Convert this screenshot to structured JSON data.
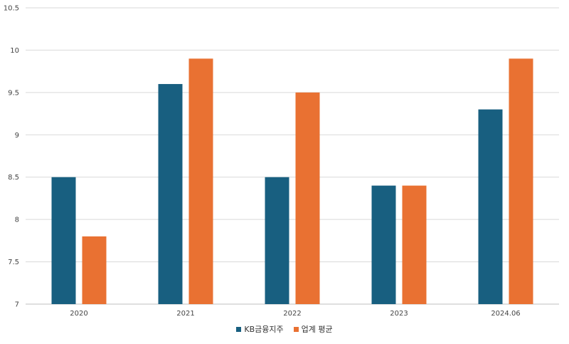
{
  "chart_data": {
    "type": "bar",
    "categories": [
      "2020",
      "2021",
      "2022",
      "2023",
      "2024.06"
    ],
    "series": [
      {
        "name": "KB금융지주",
        "values": [
          8.5,
          9.6,
          8.5,
          8.4,
          9.3
        ],
        "color": "#185f80"
      },
      {
        "name": "업계 평균",
        "values": [
          7.8,
          9.9,
          9.5,
          8.4,
          9.9
        ],
        "color": "#e97132"
      }
    ],
    "y_ticks": [
      "7",
      "7.5",
      "8",
      "8.5",
      "9",
      "9.5",
      "10",
      "10.5"
    ],
    "ylim": [
      7,
      10.5
    ],
    "grid": true,
    "legend_position": "bottom-center"
  }
}
